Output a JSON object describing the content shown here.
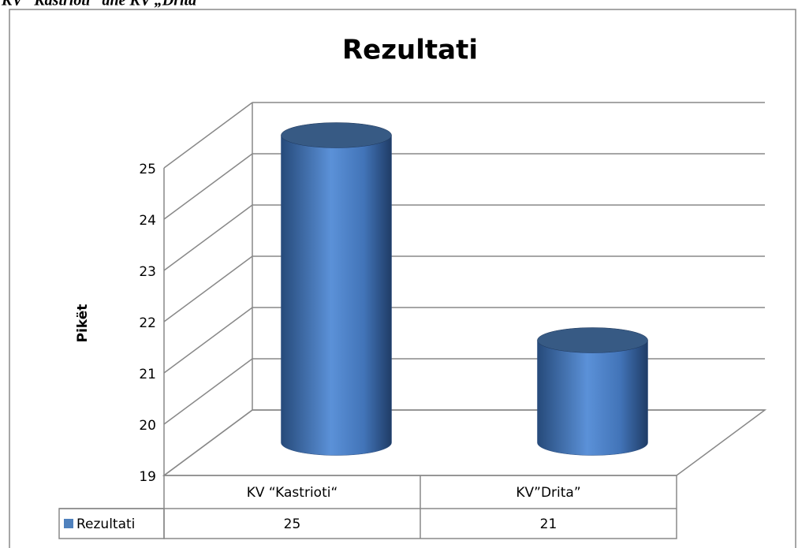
{
  "heading": "KV “Kastrioti” dhe KV „Drita”",
  "chart_data": {
    "type": "bar",
    "title": "Rezultati",
    "y_label": "Pikët",
    "categories": [
      "KV  “Kastrioti“",
      "KV”Drita”"
    ],
    "series": [
      {
        "name": "Rezultati",
        "color": "#4f81bd",
        "values": [
          25,
          21
        ]
      }
    ],
    "ylim": [
      19,
      25
    ],
    "yticks": [
      19,
      20,
      21,
      22,
      23,
      24,
      25
    ],
    "grid": true
  }
}
